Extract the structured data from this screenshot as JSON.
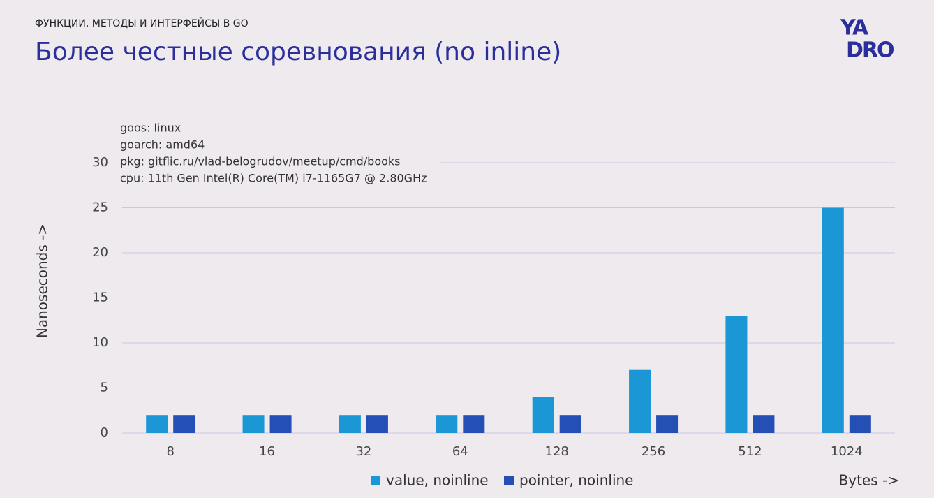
{
  "header": {
    "section": "ФУНКЦИИ, МЕТОДЫ И ИНТЕРФЕЙСЫ В GO",
    "title": "Более честные соревнования (no inline)",
    "logo": [
      "YA",
      "DRO"
    ]
  },
  "chart_data": {
    "type": "bar",
    "annotation": [
      "goos: linux",
      "goarch: amd64",
      "pkg: gitflic.ru/vlad-belogrudov/meetup/cmd/books",
      "cpu: 11th Gen Intel(R) Core(TM) i7-1165G7 @ 2.80GHz"
    ],
    "y_label": "Nanoseconds ->",
    "x_label": "Bytes ->",
    "categories": [
      "8",
      "16",
      "32",
      "64",
      "128",
      "256",
      "512",
      "1024"
    ],
    "series": [
      {
        "name": "value, noinline",
        "color": "#1b97d5",
        "values": [
          2,
          2,
          2,
          2,
          4,
          7,
          13,
          25
        ]
      },
      {
        "name": "pointer, noinline",
        "color": "#2450b6",
        "values": [
          2,
          2,
          2,
          2,
          2,
          2,
          2,
          2
        ]
      }
    ],
    "ylim": [
      0,
      30
    ],
    "yticks": [
      0,
      5,
      10,
      15,
      20,
      25,
      30
    ],
    "grid": true
  }
}
